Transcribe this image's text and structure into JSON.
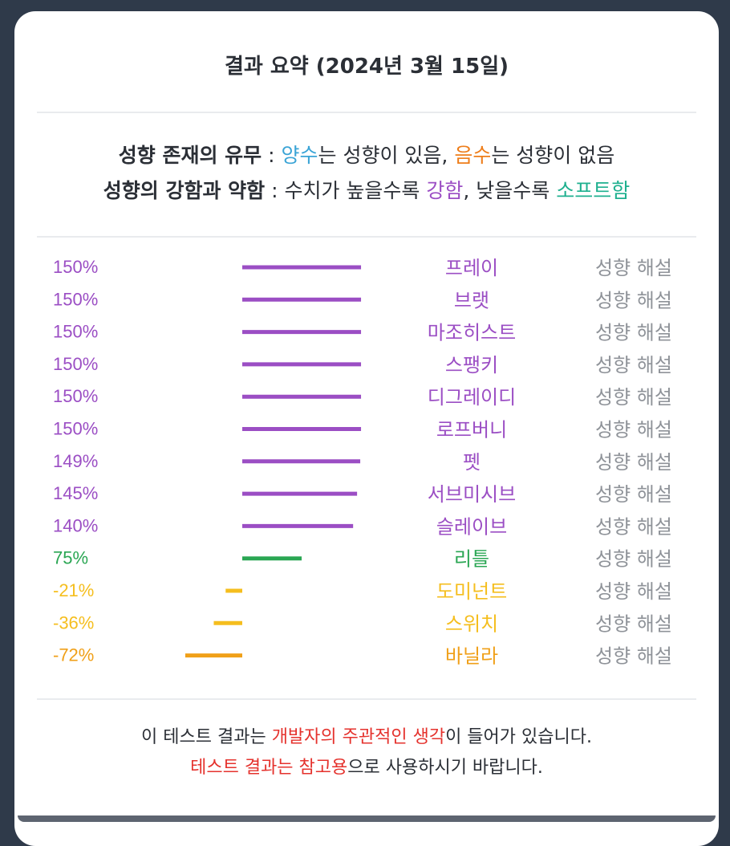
{
  "title": "결과 요약 (2024년 3월 15일)",
  "legend": {
    "line1": {
      "label": "성향 존재의 유무",
      "sep": " : ",
      "positive_word": "양수",
      "positive_rest": "는 성향이 있음, ",
      "negative_word": "음수",
      "negative_rest": "는 성향이 없음"
    },
    "line2": {
      "label": "성향의 강함과 약함",
      "sep": " : 수치가 높을수록 ",
      "strong_word": "강함",
      "middle": ", 낮을수록 ",
      "soft_word": "소프트함"
    }
  },
  "colors": {
    "strong": "#9b4ec4",
    "moderate": "#2aa653",
    "negative_light": "#f5be1e",
    "negative": "#f0a019",
    "positive_word": "#3aa4d6",
    "negative_word": "#ee7d1a",
    "soft_word": "#1fb08f"
  },
  "chart_data": {
    "type": "bar",
    "orientation": "horizontal",
    "unit": "%",
    "xlim": [
      -85,
      165
    ],
    "categories": [
      "프레이",
      "브랫",
      "마조히스트",
      "스팽키",
      "디그레이디",
      "로프버니",
      "펫",
      "서브미시브",
      "슬레이브",
      "리틀",
      "도미넌트",
      "스위치",
      "바닐라"
    ],
    "values": [
      150,
      150,
      150,
      150,
      150,
      150,
      149,
      145,
      140,
      75,
      -21,
      -36,
      -72
    ],
    "value_labels": [
      "150%",
      "150%",
      "150%",
      "150%",
      "150%",
      "150%",
      "149%",
      "145%",
      "140%",
      "75%",
      "-21%",
      "-36%",
      "-72%"
    ],
    "bar_colors": [
      "#9b4ec4",
      "#9b4ec4",
      "#9b4ec4",
      "#9b4ec4",
      "#9b4ec4",
      "#9b4ec4",
      "#9b4ec4",
      "#9b4ec4",
      "#9b4ec4",
      "#2aa653",
      "#f5be1e",
      "#f5be1e",
      "#f0a019"
    ],
    "link_label": "성향 해설"
  },
  "footer": {
    "line1_start": "이 테스트 결과는 ",
    "line1_highlight": "개발자의 주관적인 생각",
    "line1_end": "이 들어가 있습니다.",
    "line2_highlight": "테스트 결과는 참고용",
    "line2_end": "으로 사용하시기 바랍니다."
  }
}
